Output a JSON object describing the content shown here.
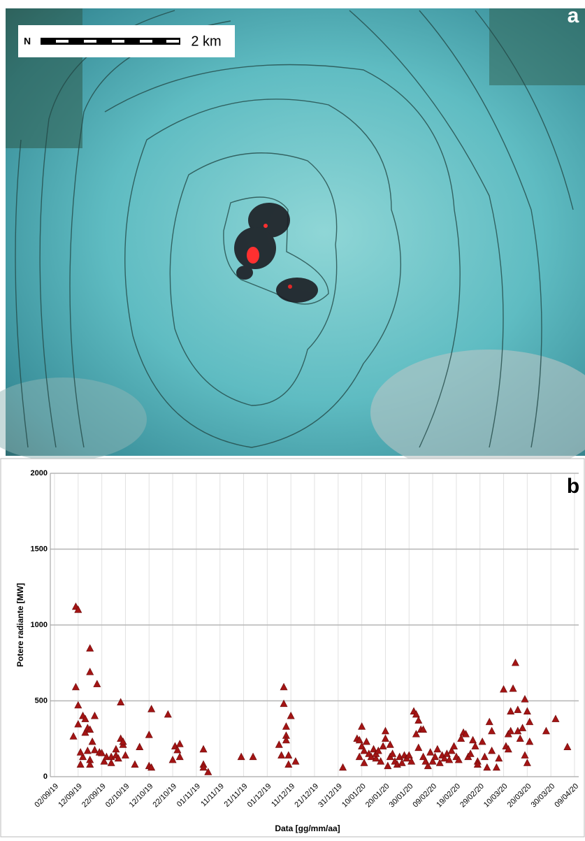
{
  "image": {
    "scale_label": "2 km",
    "panel_label": "a"
  },
  "chart_data": {
    "type": "scatter",
    "panel_label": "b",
    "y_label": "Potere radiante [MW]",
    "x_label": "Data [gg/mm/aa]",
    "ylim": [
      0,
      2000
    ],
    "yticks": [
      0,
      500,
      1000,
      1500,
      2000
    ],
    "grid": true,
    "xlim": [
      "02/09/19",
      "09/04/20"
    ],
    "xticks": [
      "02/09/19",
      "12/09/19",
      "22/09/19",
      "02/10/19",
      "12/10/19",
      "22/10/19",
      "01/11/19",
      "11/11/19",
      "21/11/19",
      "01/12/19",
      "11/12/19",
      "21/12/19",
      "31/12/19",
      "10/01/20",
      "20/01/20",
      "30/01/20",
      "09/02/20",
      "19/02/20",
      "29/02/20",
      "10/03/20",
      "20/03/20",
      "30/03/20",
      "09/04/20"
    ],
    "series": [
      {
        "color": "#a31414",
        "x": [
          "11/09/19",
          "12/09/19",
          "11/09/19",
          "12/09/19",
          "10/09/19",
          "12/09/19",
          "14/09/19",
          "15/09/19",
          "17/09/19",
          "17/09/19",
          "19/09/19",
          "20/09/19",
          "13/09/19",
          "14/09/19",
          "13/09/19",
          "15/09/19",
          "16/09/19",
          "17/09/19",
          "16/09/19",
          "17/09/19",
          "17/09/19",
          "18/09/19",
          "19/09/19",
          "21/09/19",
          "22/09/19",
          "23/09/19",
          "24/09/19",
          "26/09/19",
          "26/09/19",
          "28/09/19",
          "28/09/19",
          "30/09/19",
          "30/09/19",
          "29/09/19",
          "01/10/19",
          "02/10/19",
          "01/10/19",
          "06/10/19",
          "08/10/19",
          "12/10/19",
          "12/10/19",
          "13/10/19",
          "13/10/19",
          "20/10/19",
          "22/10/19",
          "23/10/19",
          "24/10/19",
          "25/10/19",
          "25/10/19",
          "04/11/19",
          "04/11/19",
          "04/11/19",
          "06/11/19",
          "20/11/19",
          "25/11/19",
          "06/12/19",
          "07/12/19",
          "08/12/19",
          "08/12/19",
          "09/12/19",
          "09/12/19",
          "09/12/19",
          "10/12/19",
          "10/12/19",
          "11/12/19",
          "13/12/19",
          "02/01/20",
          "08/01/20",
          "09/01/20",
          "09/01/20",
          "10/01/20",
          "10/01/20",
          "11/01/20",
          "11/01/20",
          "12/01/20",
          "13/01/20",
          "14/01/20",
          "15/01/20",
          "16/01/20",
          "16/01/20",
          "17/01/20",
          "18/01/20",
          "19/01/20",
          "20/01/20",
          "20/01/20",
          "21/01/20",
          "22/01/20",
          "22/01/20",
          "23/01/20",
          "24/01/20",
          "25/01/20",
          "26/01/20",
          "27/01/20",
          "28/01/20",
          "29/01/20",
          "30/01/20",
          "31/01/20",
          "01/02/20",
          "02/02/20",
          "02/02/20",
          "03/02/20",
          "03/02/20",
          "04/02/20",
          "05/02/20",
          "05/02/20",
          "06/02/20",
          "07/02/20",
          "08/02/20",
          "09/02/20",
          "10/02/20",
          "11/02/20",
          "12/02/20",
          "13/02/20",
          "14/02/20",
          "15/02/20",
          "16/02/20",
          "17/02/20",
          "18/02/20",
          "19/02/20",
          "20/02/20",
          "21/02/20",
          "22/02/20",
          "23/02/20",
          "24/02/20",
          "25/02/20",
          "26/02/20",
          "27/02/20",
          "28/02/20",
          "28/02/20",
          "01/03/20",
          "02/03/20",
          "03/03/20",
          "04/03/20",
          "05/03/20",
          "05/03/20",
          "07/03/20",
          "08/03/20",
          "10/03/20",
          "11/03/20",
          "12/03/20",
          "12/03/20",
          "13/03/20",
          "13/03/20",
          "14/03/20",
          "15/03/20",
          "16/03/20",
          "16/03/20",
          "17/03/20",
          "18/03/20",
          "19/03/20",
          "19/03/20",
          "20/03/20",
          "20/03/20",
          "21/03/20",
          "21/03/20",
          "28/03/20",
          "01/04/20",
          "06/04/20"
        ],
        "values": [
          1120,
          1100,
          590,
          470,
          265,
          345,
          400,
          380,
          845,
          690,
          400,
          610,
          80,
          130,
          160,
          290,
          320,
          310,
          170,
          110,
          80,
          230,
          175,
          160,
          155,
          100,
          130,
          130,
          90,
          140,
          180,
          490,
          250,
          120,
          210,
          140,
          230,
          80,
          195,
          275,
          70,
          60,
          445,
          410,
          110,
          200,
          175,
          130,
          215,
          180,
          80,
          60,
          30,
          130,
          130,
          210,
          140,
          480,
          590,
          330,
          270,
          240,
          140,
          80,
          400,
          100,
          60,
          250,
          240,
          130,
          330,
          200,
          170,
          90,
          230,
          150,
          130,
          180,
          120,
          150,
          170,
          100,
          200,
          300,
          250,
          70,
          130,
          210,
          150,
          100,
          80,
          130,
          90,
          140,
          120,
          140,
          100,
          430,
          410,
          280,
          370,
          190,
          310,
          310,
          130,
          100,
          70,
          160,
          100,
          130,
          180,
          90,
          140,
          120,
          150,
          110,
          170,
          200,
          130,
          110,
          250,
          290,
          280,
          130,
          150,
          240,
          200,
          100,
          80,
          230,
          130,
          60,
          360,
          300,
          170,
          60,
          120,
          575,
          200,
          180,
          280,
          430,
          300,
          580,
          750,
          440,
          300,
          250,
          320,
          510,
          140,
          90,
          430,
          360,
          230,
          300,
          380,
          195
        ]
      }
    ]
  }
}
